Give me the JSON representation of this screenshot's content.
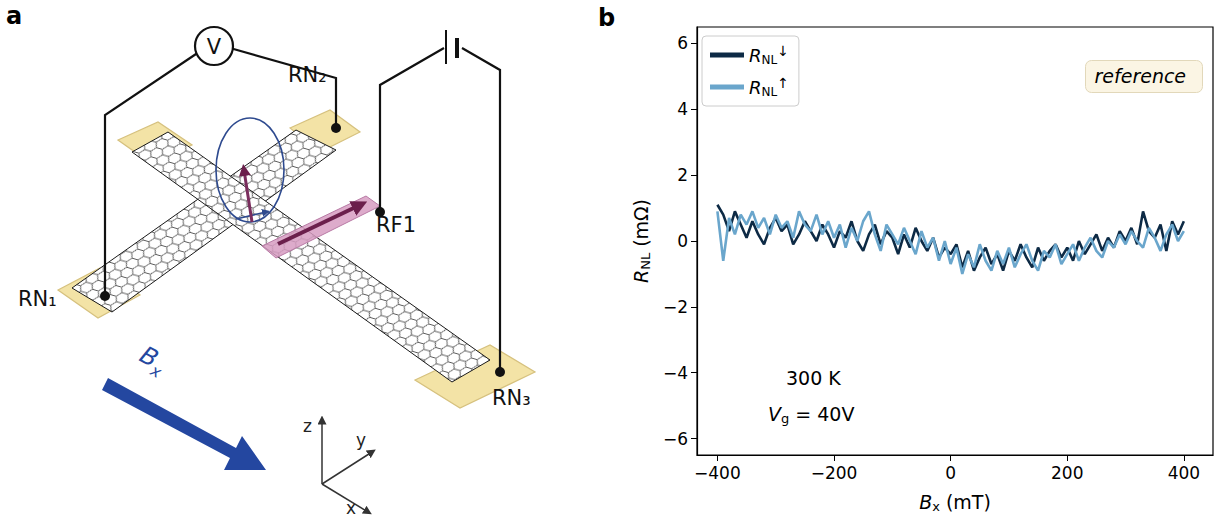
{
  "chart_data": {
    "type": "line",
    "panel_label": "b",
    "x_label": "Bx (mT)",
    "y_label": "RNL (mΩ)",
    "annotations": [
      "reference",
      "300 K",
      "Vg = 40V"
    ],
    "xlim": [
      -435,
      450
    ],
    "xticks": [
      {
        "value": -400,
        "label": "−400"
      },
      {
        "value": -200,
        "label": "−200"
      },
      0,
      200,
      400
    ],
    "ylim": [
      -6.5,
      6.5
    ],
    "yticks": [
      {
        "value": -6,
        "label": "−6"
      },
      {
        "value": -4,
        "label": "−4"
      },
      {
        "value": -2,
        "label": "−2"
      },
      0,
      2,
      4,
      6
    ],
    "grid": false,
    "legend": "upper left",
    "x": [
      -400,
      -390,
      -380,
      -370,
      -360,
      -350,
      -340,
      -330,
      -320,
      -310,
      -300,
      -290,
      -280,
      -270,
      -260,
      -250,
      -240,
      -230,
      -220,
      -210,
      -200,
      -190,
      -180,
      -170,
      -160,
      -150,
      -140,
      -130,
      -120,
      -110,
      -100,
      -90,
      -80,
      -70,
      -60,
      -50,
      -40,
      -30,
      -20,
      -10,
      0,
      10,
      20,
      30,
      40,
      50,
      60,
      70,
      80,
      90,
      100,
      110,
      120,
      130,
      140,
      150,
      160,
      170,
      180,
      190,
      200,
      210,
      220,
      230,
      240,
      250,
      260,
      270,
      280,
      290,
      300,
      310,
      320,
      330,
      340,
      350,
      360,
      370,
      380,
      390,
      400
    ],
    "series": [
      {
        "name": "RNL↓",
        "color": "#0d2a45",
        "values": [
          1.1,
          0.8,
          0.3,
          0.9,
          0.5,
          0.1,
          0.6,
          0.2,
          -0.1,
          0.4,
          0.7,
          0.3,
          0.5,
          -0.1,
          0.2,
          0.6,
          0.3,
          0.0,
          0.5,
          0.2,
          -0.2,
          0.3,
          0.1,
          0.6,
          0.0,
          -0.3,
          0.2,
          0.5,
          -0.1,
          0.3,
          0.1,
          -0.4,
          0.2,
          -0.2,
          0.4,
          0.0,
          -0.3,
          0.1,
          -0.5,
          -0.2,
          -0.4,
          -0.1,
          -0.8,
          -0.3,
          -0.9,
          -0.5,
          -0.2,
          -0.7,
          -0.4,
          -0.9,
          -0.3,
          -0.6,
          -0.1,
          -0.5,
          -0.8,
          -0.2,
          -0.6,
          -0.3,
          -0.1,
          -0.5,
          -0.2,
          -0.6,
          0.0,
          -0.4,
          -0.1,
          0.2,
          -0.3,
          0.1,
          -0.2,
          0.3,
          0.0,
          0.4,
          -0.1,
          0.9,
          0.3,
          0.1,
          0.5,
          -0.3,
          0.6,
          0.2,
          0.6
        ]
      },
      {
        "name": "RNL↑",
        "color": "#6aa6cc",
        "values": [
          0.9,
          -0.6,
          0.7,
          0.2,
          0.8,
          0.5,
          0.9,
          0.4,
          0.7,
          0.2,
          0.8,
          0.4,
          0.6,
          0.1,
          0.9,
          0.5,
          0.3,
          0.8,
          0.2,
          0.6,
          0.1,
          0.5,
          -0.2,
          0.4,
          0.0,
          0.6,
          0.9,
          0.2,
          -0.3,
          0.5,
          0.2,
          -0.1,
          0.4,
          0.0,
          -0.4,
          0.3,
          -0.2,
          0.1,
          -0.6,
          0.0,
          -0.7,
          -0.2,
          -1.0,
          -0.4,
          -0.8,
          -0.1,
          -0.6,
          -0.9,
          -0.3,
          -0.7,
          -0.2,
          -0.8,
          -0.4,
          -0.1,
          -0.6,
          -0.9,
          -0.3,
          -0.5,
          -0.1,
          -0.7,
          -0.4,
          -0.1,
          -0.6,
          -0.2,
          0.1,
          -0.3,
          -0.5,
          0.0,
          -0.2,
          0.2,
          -0.1,
          0.3,
          0.0,
          -0.2,
          0.4,
          0.1,
          -0.3,
          0.2,
          0.5,
          0.0,
          0.3
        ]
      }
    ]
  },
  "diagram": {
    "panel_label": "a",
    "meter": "V",
    "contacts": [
      "RN₁",
      "RN₂",
      "RN₃"
    ],
    "ferromagnet": "RF1",
    "field": "Bx",
    "axes": [
      "z",
      "y",
      "x"
    ]
  }
}
